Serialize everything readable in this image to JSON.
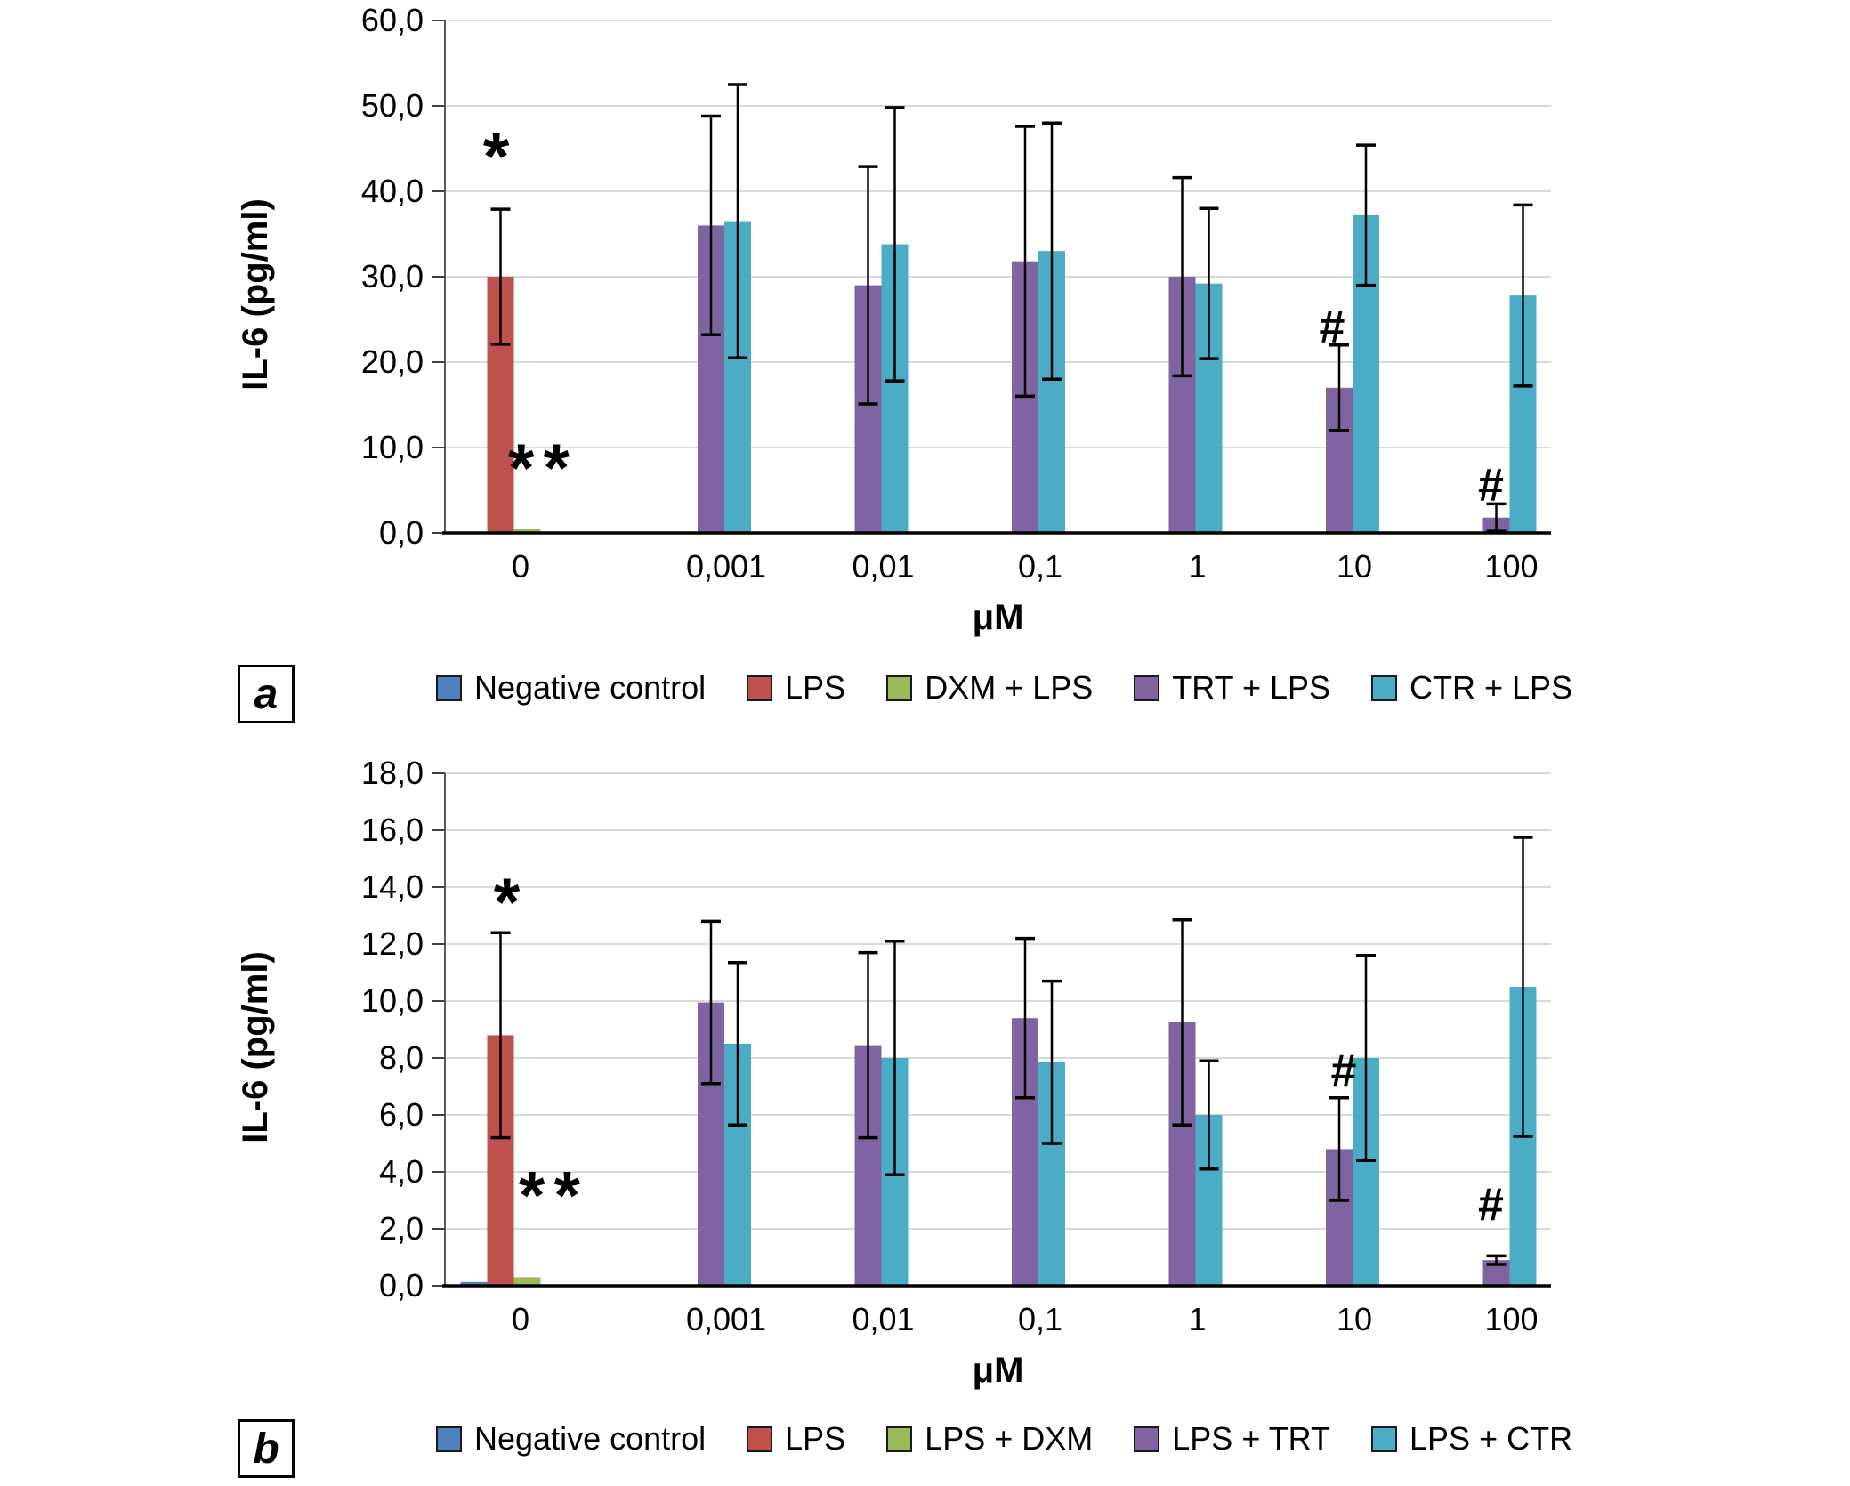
{
  "figure": {
    "background": "#ffffff",
    "panel_letters": [
      "a",
      "b"
    ]
  },
  "palette": {
    "negative_control": "#4F81BD",
    "lps": "#C0504D",
    "dxm": "#9BBB59",
    "trt": "#8064A2",
    "ctr": "#4BACC6",
    "gridline": "#D9D9D9",
    "axis": "#000000"
  },
  "chart_data": [
    {
      "panel_label": "a",
      "type": "bar",
      "title": "",
      "xlabel": "μM",
      "ylabel": "IL-6 (pg/ml)",
      "ylim": [
        0,
        60
      ],
      "ytick_step": 10,
      "ytick_labels": [
        "0,0",
        "10,0",
        "20,0",
        "30,0",
        "40,0",
        "50,0",
        "60,0"
      ],
      "categories": [
        "0",
        "0,001",
        "0,01",
        "0,1",
        "1",
        "10",
        "100"
      ],
      "grid": true,
      "legend_position": "bottom",
      "series": [
        {
          "name": "Negative control",
          "color": "#4F81BD",
          "values": [
            0.05,
            0,
            0,
            0,
            0,
            0,
            0
          ],
          "errors": [
            null,
            null,
            null,
            null,
            null,
            null,
            null
          ]
        },
        {
          "name": "LPS",
          "color": "#C0504D",
          "values": [
            30.0,
            0,
            0,
            0,
            0,
            0,
            0
          ],
          "errors": [
            7.9,
            null,
            null,
            null,
            null,
            null,
            null
          ]
        },
        {
          "name": "DXM + LPS",
          "color": "#9BBB59",
          "values": [
            0.5,
            0,
            0,
            0,
            0,
            0,
            0
          ],
          "errors": [
            null,
            null,
            null,
            null,
            null,
            null,
            null
          ]
        },
        {
          "name": "TRT + LPS",
          "color": "#8064A2",
          "values": [
            0,
            36.0,
            29.0,
            31.8,
            30.0,
            17.0,
            1.8
          ],
          "errors": [
            null,
            12.8,
            13.9,
            15.8,
            11.6,
            5.0,
            1.6
          ]
        },
        {
          "name": "CTR + LPS",
          "color": "#4BACC6",
          "values": [
            0,
            36.5,
            33.8,
            33.0,
            29.2,
            37.2,
            27.8
          ],
          "errors": [
            null,
            16.0,
            16.0,
            15.0,
            8.8,
            8.2,
            10.6
          ]
        }
      ],
      "annotations": [
        {
          "text": "*",
          "category": 0,
          "series": 1,
          "value": 44.5,
          "dx": 0
        },
        {
          "text": "**",
          "category": 0,
          "series": 2,
          "value": 8.0,
          "dx": 18
        },
        {
          "text": "#",
          "category": 5,
          "series": 3,
          "value": 24.3,
          "dx": -8
        },
        {
          "text": "#",
          "category": 6,
          "series": 3,
          "value": 5.8,
          "dx": -6
        }
      ]
    },
    {
      "panel_label": "b",
      "type": "bar",
      "title": "",
      "xlabel": "μM",
      "ylabel": "IL-6 (pg/ml)",
      "ylim": [
        0,
        18
      ],
      "ytick_step": 2,
      "ytick_labels": [
        "0,0",
        "2,0",
        "4,0",
        "6,0",
        "8,0",
        "10,0",
        "12,0",
        "14,0",
        "16,0",
        "18,0"
      ],
      "categories": [
        "0",
        "0,001",
        "0,01",
        "0,1",
        "1",
        "10",
        "100"
      ],
      "grid": true,
      "legend_position": "bottom",
      "series": [
        {
          "name": "Negative control",
          "color": "#4F81BD",
          "values": [
            0.13,
            0,
            0,
            0,
            0,
            0,
            0
          ],
          "errors": [
            null,
            null,
            null,
            null,
            null,
            null,
            null
          ]
        },
        {
          "name": "LPS",
          "color": "#C0504D",
          "values": [
            8.8,
            0,
            0,
            0,
            0,
            0,
            0
          ],
          "errors": [
            3.6,
            null,
            null,
            null,
            null,
            null,
            null
          ]
        },
        {
          "name": "LPS + DXM",
          "color": "#9BBB59",
          "values": [
            0.3,
            0,
            0,
            0,
            0,
            0,
            0
          ],
          "errors": [
            null,
            null,
            null,
            null,
            null,
            null,
            null
          ]
        },
        {
          "name": "LPS + TRT",
          "color": "#8064A2",
          "values": [
            0,
            9.95,
            8.45,
            9.4,
            9.25,
            4.8,
            0.9
          ],
          "errors": [
            null,
            2.85,
            3.25,
            2.8,
            3.6,
            1.8,
            0.15
          ]
        },
        {
          "name": "LPS + CTR",
          "color": "#4BACC6",
          "values": [
            0,
            8.5,
            8.0,
            7.85,
            6.0,
            8.0,
            10.5
          ],
          "errors": [
            null,
            2.85,
            4.1,
            2.85,
            1.9,
            3.6,
            5.25
          ]
        }
      ],
      "annotations": [
        {
          "text": "*",
          "category": 0,
          "series": 1,
          "value": 13.6,
          "dx": 12
        },
        {
          "text": "**",
          "category": 0,
          "series": 2,
          "value": 3.3,
          "dx": 30
        },
        {
          "text": "#",
          "category": 5,
          "series": 3,
          "value": 7.6,
          "dx": 5
        },
        {
          "text": "#",
          "category": 6,
          "series": 3,
          "value": 2.9,
          "dx": -6
        }
      ]
    }
  ]
}
